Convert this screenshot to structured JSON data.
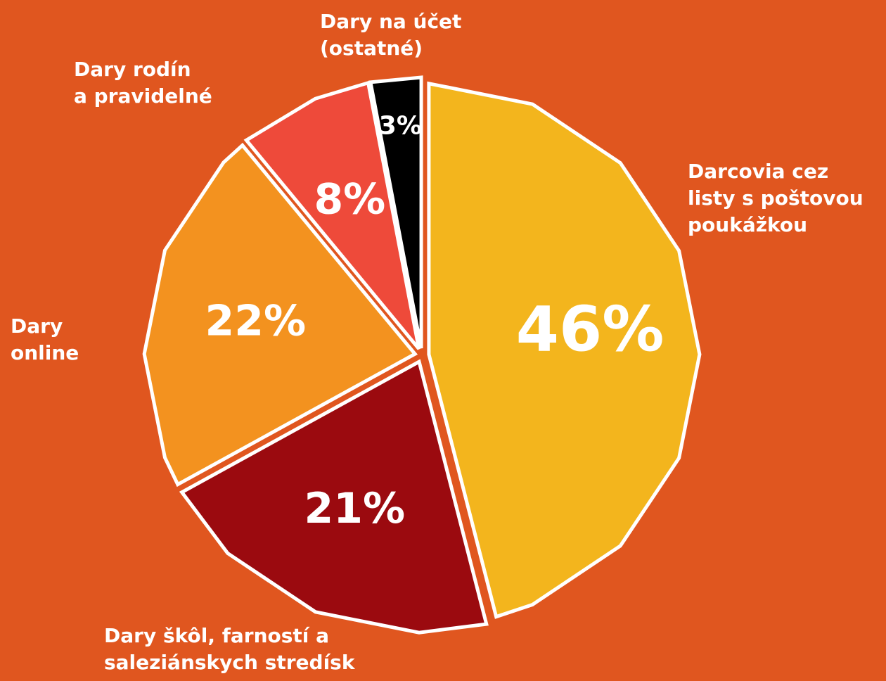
{
  "chart_data": {
    "type": "pie",
    "categories": [
      "Darcovia cez\nlisty s poštovou\npoukážkou",
      "Dary škôl, farností a\nsaleziánskych stredísk",
      "Dary\nonline",
      "Dary rodín\na pravidelné",
      "Dary na účet\n(ostatné)"
    ],
    "values": [
      46,
      21,
      22,
      8,
      3
    ],
    "value_labels": [
      "46%",
      "21%",
      "22%",
      "8%",
      "3%"
    ],
    "colors": [
      "#F3B51D",
      "#9B0A0F",
      "#F3921F",
      "#EE4A3A",
      "#000000"
    ]
  }
}
